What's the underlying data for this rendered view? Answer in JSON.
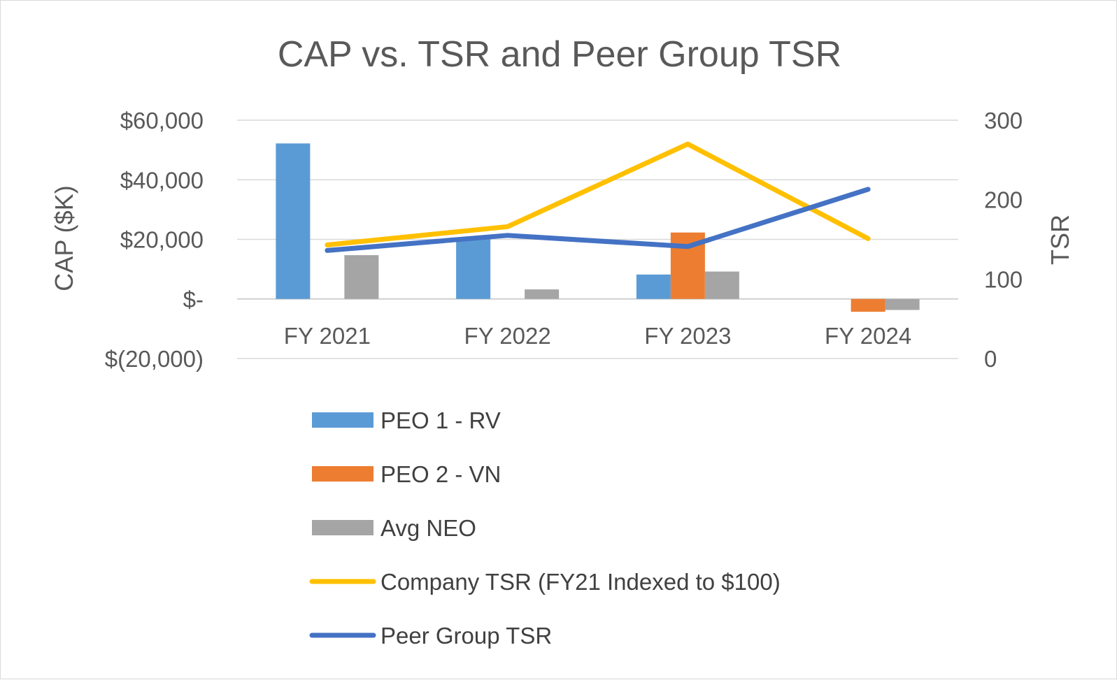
{
  "chart_data": {
    "type": "bar+line",
    "title": "CAP vs. TSR and Peer Group TSR",
    "categories": [
      "FY 2021",
      "FY 2022",
      "FY 2023",
      "FY 2024"
    ],
    "y_left": {
      "label": "CAP ($K)",
      "min": -20000,
      "max": 60000,
      "ticks": [
        60000,
        40000,
        20000,
        0,
        -20000
      ],
      "tick_labels": [
        "$60,000",
        "$40,000",
        "$20,000",
        "$-",
        "$(20,000)"
      ]
    },
    "y_right": {
      "label": "TSR",
      "min": 0,
      "max": 300,
      "ticks": [
        300,
        200,
        100,
        0
      ],
      "tick_labels": [
        "300",
        "200",
        "100",
        "0"
      ]
    },
    "bar_series": [
      {
        "name": "PEO 1 - RV",
        "color": "#5b9bd5",
        "values": [
          52200,
          20700,
          8200,
          null
        ]
      },
      {
        "name": "PEO 2 - VN",
        "color": "#ed7d31",
        "values": [
          null,
          null,
          22300,
          -4300
        ]
      },
      {
        "name": "Avg NEO",
        "color": "#a5a5a5",
        "values": [
          14700,
          3200,
          9200,
          -3700
        ]
      }
    ],
    "line_series": [
      {
        "name": "Company TSR (FY21 Indexed to $100)",
        "color": "#ffc000",
        "values": [
          143,
          166,
          270,
          151
        ]
      },
      {
        "name": "Peer Group TSR",
        "color": "#4472c4",
        "values": [
          136,
          155,
          141,
          213
        ]
      }
    ],
    "legend_position": "bottom"
  }
}
